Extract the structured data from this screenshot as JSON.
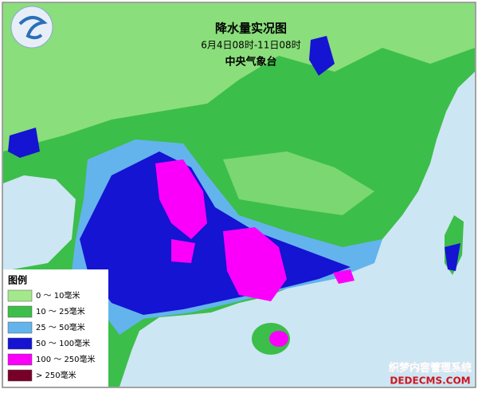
{
  "header": {
    "title": "降水量实况图",
    "subtitle": "6月4日08时-11日08时",
    "agency": "中央气象台"
  },
  "legend": {
    "title": "图例",
    "items": [
      {
        "label": "0 ～ 10毫米",
        "color": "#a4e88c"
      },
      {
        "label": "10 ～ 25毫米",
        "color": "#3cbe4a"
      },
      {
        "label": "25 ～ 50毫米",
        "color": "#63b4ec"
      },
      {
        "label": "50 ～ 100毫米",
        "color": "#1414d2"
      },
      {
        "label": "100 ～ 250毫米",
        "color": "#fa00fa"
      },
      {
        "label": "> 250毫米",
        "color": "#780028"
      }
    ]
  },
  "watermark": {
    "line1": "织梦内容管理系统",
    "line2": "DEDECMS.COM"
  }
}
